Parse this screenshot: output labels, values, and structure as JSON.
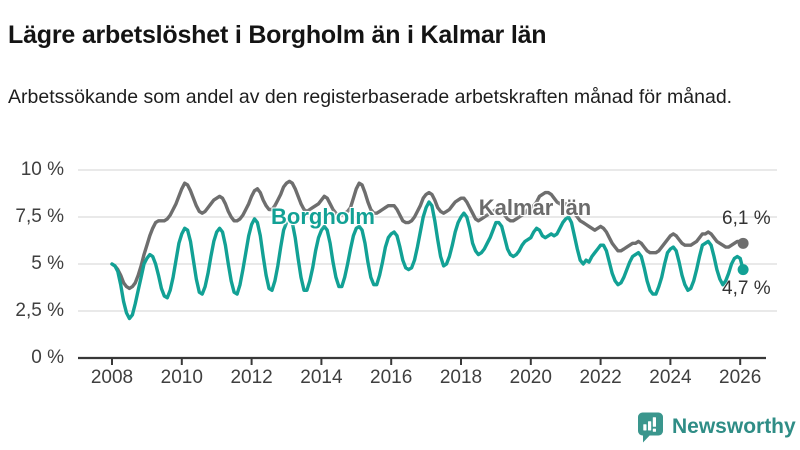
{
  "header": {
    "title": "Lägre arbetslöshet i Borgholm än i Kalmar län",
    "subtitle": "Arbetssökande som andel av den registerbaserade arbetskraften månad för månad."
  },
  "chart_data": {
    "type": "line",
    "title": "Lägre arbetslöshet i Borgholm än i Kalmar län",
    "xlabel": "",
    "ylabel": "",
    "x_unit": "month",
    "x_start": "2008-01",
    "x_end": "2026-02",
    "ylim": [
      0,
      10
    ],
    "grid": "horizontal",
    "legend_position": "inline-labels",
    "y_tick_labels": [
      "10 %",
      "7,5 %",
      "5 %",
      "2,5 %",
      "0 %"
    ],
    "y_tick_values": [
      10,
      7.5,
      5,
      2.5,
      0
    ],
    "x_tick_labels": [
      "2008",
      "2010",
      "2012",
      "2014",
      "2016",
      "2018",
      "2020",
      "2022",
      "2024",
      "2026"
    ],
    "series": [
      {
        "name": "Kalmar län",
        "color": "#6e6e6e",
        "end_label": "6,1 %",
        "last_value": 6.1,
        "values": [
          5.0,
          4.9,
          4.7,
          4.4,
          4.0,
          3.8,
          3.7,
          3.8,
          4.0,
          4.4,
          4.9,
          5.5,
          6.0,
          6.5,
          6.9,
          7.2,
          7.3,
          7.3,
          7.3,
          7.4,
          7.6,
          7.9,
          8.2,
          8.6,
          9.0,
          9.3,
          9.2,
          8.9,
          8.5,
          8.1,
          7.8,
          7.7,
          7.8,
          8.0,
          8.2,
          8.4,
          8.5,
          8.6,
          8.5,
          8.2,
          7.8,
          7.5,
          7.3,
          7.3,
          7.4,
          7.6,
          7.9,
          8.2,
          8.6,
          8.9,
          9.0,
          8.8,
          8.4,
          8.1,
          7.9,
          7.9,
          8.1,
          8.4,
          8.7,
          9.1,
          9.3,
          9.4,
          9.3,
          9.0,
          8.6,
          8.2,
          7.9,
          7.8,
          7.9,
          8.0,
          8.1,
          8.2,
          8.4,
          8.6,
          8.5,
          8.2,
          7.9,
          7.7,
          7.6,
          7.6,
          7.7,
          7.8,
          8.0,
          8.5,
          9.0,
          9.3,
          9.2,
          8.8,
          8.3,
          7.9,
          7.7,
          7.7,
          7.8,
          7.9,
          8.0,
          8.1,
          8.1,
          8.1,
          7.9,
          7.6,
          7.3,
          7.2,
          7.2,
          7.3,
          7.5,
          7.8,
          8.1,
          8.5,
          8.7,
          8.8,
          8.7,
          8.4,
          8.0,
          7.8,
          7.7,
          7.8,
          7.9,
          8.1,
          8.3,
          8.4,
          8.5,
          8.5,
          8.3,
          8.0,
          7.7,
          7.4,
          7.3,
          7.4,
          7.5,
          7.6,
          7.7,
          7.8,
          7.9,
          7.9,
          7.8,
          7.6,
          7.4,
          7.3,
          7.3,
          7.4,
          7.5,
          7.6,
          7.7,
          7.9,
          8.0,
          8.1,
          8.3,
          8.6,
          8.7,
          8.8,
          8.8,
          8.7,
          8.5,
          8.3,
          8.2,
          8.2,
          8.2,
          8.1,
          7.9,
          7.7,
          7.5,
          7.3,
          7.2,
          7.1,
          7.0,
          6.9,
          6.8,
          6.9,
          7.0,
          6.9,
          6.7,
          6.4,
          6.1,
          5.9,
          5.7,
          5.7,
          5.8,
          5.9,
          6.0,
          6.1,
          6.1,
          6.2,
          6.1,
          5.9,
          5.7,
          5.6,
          5.6,
          5.6,
          5.7,
          5.9,
          6.1,
          6.3,
          6.5,
          6.6,
          6.5,
          6.3,
          6.1,
          6.0,
          6.0,
          6.0,
          6.1,
          6.2,
          6.4,
          6.6,
          6.6,
          6.7,
          6.6,
          6.4,
          6.2,
          6.1,
          6.0,
          5.9,
          5.9,
          6.0,
          6.1,
          6.2,
          6.2,
          6.1
        ]
      },
      {
        "name": "Borgholm",
        "color": "#12a195",
        "end_label": "4,7 %",
        "last_value": 4.7,
        "values": [
          5.0,
          4.9,
          4.6,
          3.9,
          3.0,
          2.4,
          2.1,
          2.3,
          2.9,
          3.6,
          4.3,
          5.0,
          5.3,
          5.5,
          5.4,
          5.0,
          4.4,
          3.7,
          3.3,
          3.2,
          3.6,
          4.3,
          5.2,
          6.1,
          6.6,
          6.9,
          6.8,
          6.2,
          5.2,
          4.2,
          3.5,
          3.4,
          3.8,
          4.5,
          5.4,
          6.2,
          6.7,
          6.9,
          6.7,
          6.0,
          5.0,
          4.1,
          3.5,
          3.4,
          3.9,
          4.7,
          5.6,
          6.5,
          7.1,
          7.4,
          7.2,
          6.5,
          5.4,
          4.4,
          3.7,
          3.6,
          4.1,
          4.9,
          5.9,
          6.8,
          7.2,
          7.4,
          7.2,
          6.4,
          5.3,
          4.3,
          3.6,
          3.6,
          4.1,
          4.8,
          5.7,
          6.4,
          6.8,
          7.0,
          6.8,
          6.1,
          5.1,
          4.3,
          3.8,
          3.8,
          4.3,
          5.0,
          5.8,
          6.5,
          6.9,
          7.0,
          6.8,
          6.1,
          5.1,
          4.3,
          3.9,
          3.9,
          4.4,
          5.1,
          5.9,
          6.4,
          6.6,
          6.7,
          6.5,
          5.9,
          5.2,
          4.8,
          4.7,
          4.8,
          5.2,
          5.9,
          6.7,
          7.5,
          8.0,
          8.3,
          8.1,
          7.3,
          6.3,
          5.4,
          4.9,
          5.0,
          5.4,
          6.0,
          6.7,
          7.2,
          7.5,
          7.7,
          7.5,
          6.9,
          6.1,
          5.7,
          5.5,
          5.6,
          5.8,
          6.1,
          6.4,
          6.8,
          7.2,
          7.2,
          7.0,
          6.4,
          5.8,
          5.5,
          5.4,
          5.5,
          5.7,
          6.0,
          6.2,
          6.3,
          6.4,
          6.7,
          6.9,
          6.8,
          6.5,
          6.4,
          6.5,
          6.6,
          6.5,
          6.6,
          6.9,
          7.2,
          7.4,
          7.5,
          7.2,
          6.5,
          5.8,
          5.2,
          5.0,
          5.2,
          5.1,
          5.4,
          5.6,
          5.8,
          6.0,
          6.0,
          5.7,
          5.1,
          4.5,
          4.1,
          3.9,
          4.0,
          4.3,
          4.7,
          5.1,
          5.4,
          5.5,
          5.6,
          5.4,
          4.8,
          4.1,
          3.6,
          3.4,
          3.4,
          3.8,
          4.3,
          5.0,
          5.6,
          5.8,
          5.9,
          5.7,
          5.1,
          4.4,
          3.9,
          3.6,
          3.7,
          4.1,
          4.7,
          5.4,
          6.0,
          6.1,
          6.2,
          6.0,
          5.4,
          4.7,
          4.2,
          3.9,
          4.1,
          4.5,
          5.0,
          5.3,
          5.4,
          5.3,
          4.7
        ]
      }
    ]
  },
  "footer": {
    "brand": "Newsworthy",
    "logo_icon": "bar-chart-speech-bubble-icon"
  },
  "colors": {
    "borgholm_teal": "#12a195",
    "kalmar_gray": "#6e6e6e",
    "axis": "#383838",
    "grid": "#dcdcdc",
    "tick_text": "#3f3f3f",
    "end_label_text": "#333333",
    "brand_teal": "#2f8d86"
  }
}
